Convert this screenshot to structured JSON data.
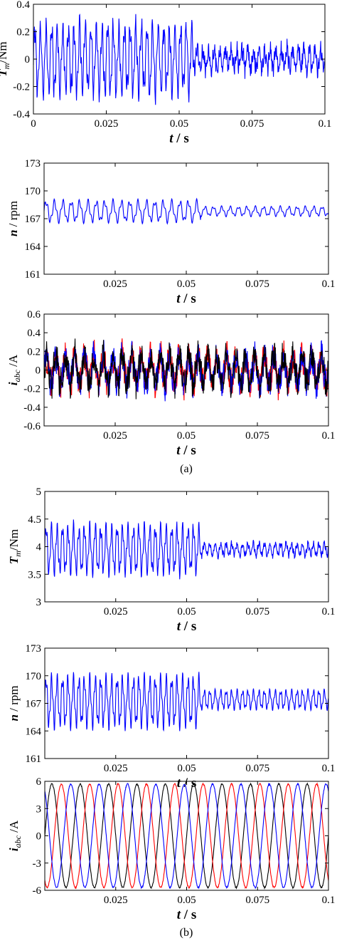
{
  "figure": {
    "caption_a": "(a)",
    "caption_b": "(b)"
  },
  "colors": {
    "blue": "#0000ff",
    "red": "#ff0000",
    "black": "#000000"
  },
  "chart_data": [
    {
      "id": "a1",
      "type": "line",
      "ylabel_main": "T",
      "ylabel_sub": "m",
      "ylabel_rest": "/Nm",
      "xlabel_main": "t",
      "xlabel_rest": " / s",
      "xlim": [
        0,
        0.1
      ],
      "ylim": [
        -0.4,
        0.4
      ],
      "xticks": [
        "0",
        "0.025",
        "0.05",
        "0.075",
        "0.1"
      ],
      "xtick_values": [
        0,
        0.025,
        0.05,
        0.075,
        0.1
      ],
      "yticks": [
        "-0.4",
        "-0.2",
        "0",
        "0.2",
        "0.4"
      ],
      "ytick_values": [
        -0.4,
        -0.2,
        0,
        0.2,
        0.4
      ],
      "series": [
        {
          "color": "#0000ff",
          "segments": [
            {
              "t0": 0,
              "t1": 0.055,
              "mean": 0.0,
              "amp": 0.22,
              "freq": 520,
              "noise": 0.05
            },
            {
              "t0": 0.055,
              "t1": 0.1,
              "mean": 0.0,
              "amp": 0.07,
              "freq": 520,
              "noise": 0.06
            }
          ]
        }
      ]
    },
    {
      "id": "a2",
      "type": "line",
      "ylabel_main": "n",
      "ylabel_sub": "",
      "ylabel_rest": " / rpm",
      "xlabel_main": "t",
      "xlabel_rest": " / s",
      "xlim": [
        0,
        0.1
      ],
      "ylim": [
        161,
        173
      ],
      "xticks": [
        "0.025",
        "0.05",
        "0.075",
        "0.1"
      ],
      "xtick_values": [
        0.025,
        0.05,
        0.075,
        0.1
      ],
      "yticks": [
        "161",
        "164",
        "167",
        "170",
        "173"
      ],
      "ytick_values": [
        161,
        164,
        167,
        170,
        173
      ],
      "series": [
        {
          "color": "#0000ff",
          "segments": [
            {
              "t0": 0,
              "t1": 0.055,
              "mean": 167.8,
              "amp": 1.0,
              "freq": 340,
              "noise": 0.0
            },
            {
              "t0": 0.055,
              "t1": 0.1,
              "mean": 167.8,
              "amp": 0.45,
              "freq": 340,
              "noise": 0.0
            }
          ]
        }
      ]
    },
    {
      "id": "a3",
      "type": "line",
      "ylabel_main": "i",
      "ylabel_sub": "abc",
      "ylabel_rest": " /A",
      "xlabel_main": "t",
      "xlabel_rest": " / s",
      "xlim": [
        0,
        0.1
      ],
      "ylim": [
        -0.6,
        0.6
      ],
      "xticks": [
        "0.025",
        "0.05",
        "0.075",
        "0.1"
      ],
      "xtick_values": [
        0.025,
        0.05,
        0.075,
        0.1
      ],
      "yticks": [
        "-0.6",
        "-0.4",
        "-0.2",
        "0",
        "0.2",
        "0.4",
        "0.6"
      ],
      "ytick_values": [
        -0.6,
        -0.4,
        -0.2,
        0,
        0.2,
        0.4,
        0.6
      ],
      "series": [
        {
          "color": "#ff0000",
          "segments": [
            {
              "t0": 0,
              "t1": 0.1,
              "mean": 0.0,
              "amp": 0.15,
              "freq": 300,
              "noise": 0.14
            }
          ]
        },
        {
          "color": "#0000ff",
          "segments": [
            {
              "t0": 0,
              "t1": 0.1,
              "mean": 0.0,
              "amp": 0.15,
              "freq": 300,
              "noise": 0.14
            }
          ]
        },
        {
          "color": "#000000",
          "segments": [
            {
              "t0": 0,
              "t1": 0.1,
              "mean": 0.0,
              "amp": 0.15,
              "freq": 300,
              "noise": 0.14
            }
          ]
        }
      ]
    },
    {
      "id": "b1",
      "type": "line",
      "ylabel_main": "T",
      "ylabel_sub": "m",
      "ylabel_rest": "/Nm",
      "xlabel_main": "t",
      "xlabel_rest": " / s",
      "xlim": [
        0,
        0.1
      ],
      "ylim": [
        3,
        5
      ],
      "xticks": [
        "0.025",
        "0.05",
        "0.075",
        "0.1"
      ],
      "xtick_values": [
        0.025,
        0.05,
        0.075,
        0.1
      ],
      "yticks": [
        "3",
        "3.5",
        "4",
        "4.5",
        "5"
      ],
      "ytick_values": [
        3,
        3.5,
        4,
        4.5,
        5
      ],
      "series": [
        {
          "color": "#0000ff",
          "segments": [
            {
              "t0": 0,
              "t1": 0.055,
              "mean": 3.95,
              "amp": 0.38,
              "freq": 520,
              "noise": 0.04
            },
            {
              "t0": 0.055,
              "t1": 0.1,
              "mean": 3.95,
              "amp": 0.1,
              "freq": 520,
              "noise": 0.05
            }
          ]
        }
      ]
    },
    {
      "id": "b2",
      "type": "line",
      "ylabel_main": "n",
      "ylabel_sub": "",
      "ylabel_rest": " / rpm",
      "xlabel_main": "t",
      "xlabel_rest": " / s",
      "xlim": [
        0,
        0.1
      ],
      "ylim": [
        161,
        173
      ],
      "xticks": [
        "0.025",
        "0.05",
        "0.075",
        "0.1"
      ],
      "xtick_values": [
        0.025,
        0.05,
        0.075,
        0.1
      ],
      "yticks": [
        "161",
        "164",
        "167",
        "170",
        "173"
      ],
      "ytick_values": [
        161,
        164,
        167,
        170,
        173
      ],
      "series": [
        {
          "color": "#0000ff",
          "segments": [
            {
              "t0": 0,
              "t1": 0.055,
              "mean": 167.2,
              "amp": 2.4,
              "freq": 520,
              "noise": 0.0
            },
            {
              "t0": 0.055,
              "t1": 0.1,
              "mean": 167.4,
              "amp": 0.9,
              "freq": 520,
              "noise": 0.0
            }
          ]
        }
      ]
    },
    {
      "id": "b3",
      "type": "line",
      "ylabel_main": "i",
      "ylabel_sub": "abc",
      "ylabel_rest": " /A",
      "xlabel_main": "t",
      "xlabel_rest": " / s",
      "xlim": [
        0,
        0.1
      ],
      "ylim": [
        -6,
        6
      ],
      "xticks": [
        "0.025",
        "0.05",
        "0.075",
        "0.1"
      ],
      "xtick_values": [
        0.025,
        0.05,
        0.075,
        0.1
      ],
      "yticks": [
        "-6",
        "-3",
        "0",
        "3",
        "6"
      ],
      "ytick_values": [
        -6,
        -3,
        0,
        3,
        6
      ],
      "series": [
        {
          "color": "#000000",
          "segments": [
            {
              "t0": 0,
              "t1": 0.1,
              "mean": 0.0,
              "amp": 5.7,
              "freq": 100,
              "noise": 0.08,
              "phase": 0.0
            }
          ]
        },
        {
          "color": "#ff0000",
          "segments": [
            {
              "t0": 0,
              "t1": 0.1,
              "mean": 0.0,
              "amp": 5.7,
              "freq": 100,
              "noise": 0.08,
              "phase": -2.094
            }
          ]
        },
        {
          "color": "#0000ff",
          "segments": [
            {
              "t0": 0,
              "t1": 0.1,
              "mean": 0.0,
              "amp": 5.7,
              "freq": 100,
              "noise": 0.08,
              "phase": 2.094
            }
          ]
        }
      ]
    }
  ]
}
